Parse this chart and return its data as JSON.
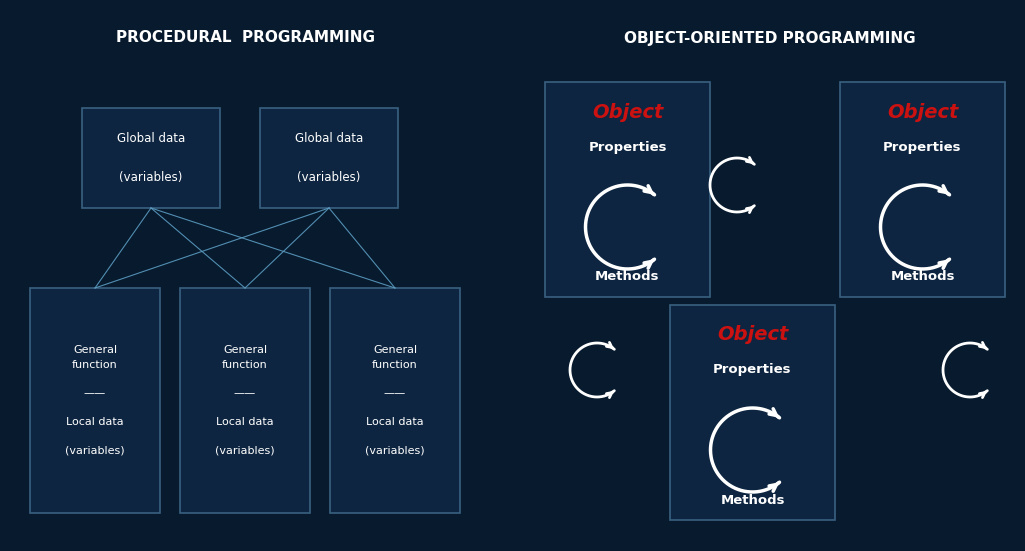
{
  "bg_color": "#071a2e",
  "box_edge_color": "#3a6080",
  "box_face_color": "#0d2540",
  "text_color": "#ffffff",
  "object_color": "#cc1111",
  "line_color": "#5a9abf",
  "arrow_color": "#ffffff",
  "title_left": "PROCEDURAL  PROGRAMMING",
  "title_right": "OBJECT-ORIENTED PROGRAMMING",
  "global_label": "Global data\n\n(variables)",
  "function_label": "General\nfunction\n\n——\n\nLocal data\n\n(variables)",
  "object_label": "Object",
  "properties_label": "Properties",
  "methods_label": "Methods",
  "fig_w": 10.25,
  "fig_h": 5.51,
  "dpi": 100
}
